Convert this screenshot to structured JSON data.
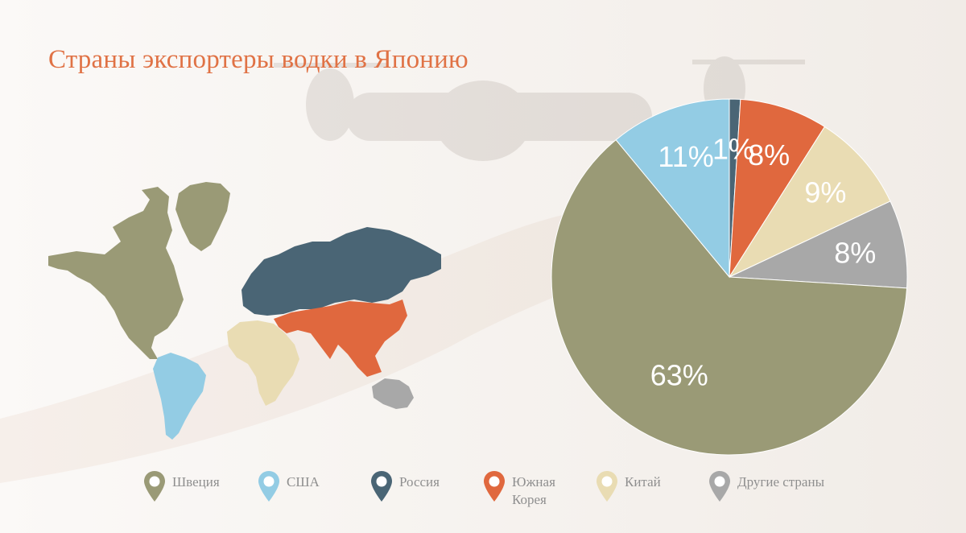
{
  "title": "Страны экспортеры водки в Японию",
  "chart_data": {
    "type": "pie",
    "start_angle_deg": 0,
    "direction": "clockwise_from_top",
    "slices": [
      {
        "label": "Россия",
        "value": 1,
        "display": "1%",
        "color": "#4a6575"
      },
      {
        "label": "Южная Корея",
        "value": 8,
        "display": "8%",
        "color": "#e0683e"
      },
      {
        "label": "Китай",
        "value": 9,
        "display": "9%",
        "color": "#e9dcb3"
      },
      {
        "label": "Другие страны",
        "value": 8,
        "display": "8%",
        "color": "#a8a8a8"
      },
      {
        "label": "Швеция",
        "value": 63,
        "display": "63%",
        "color": "#9a9a76"
      },
      {
        "label": "США",
        "value": 11,
        "display": "11%",
        "color": "#93cce4"
      }
    ]
  },
  "legend": [
    {
      "label": "Швеция",
      "color": "#9a9a76"
    },
    {
      "label": "США",
      "color": "#93cce4"
    },
    {
      "label": "Россия",
      "color": "#4a6575"
    },
    {
      "label": "Южная\nКорея",
      "color": "#e0683e"
    },
    {
      "label": "Китай",
      "color": "#e9dcb3"
    },
    {
      "label": "Другие страны",
      "color": "#a8a8a8"
    }
  ],
  "map_regions": [
    {
      "name": "north-america",
      "color": "#9a9a76"
    },
    {
      "name": "greenland",
      "color": "#9a9a76"
    },
    {
      "name": "south-america",
      "color": "#93cce4"
    },
    {
      "name": "europe-russia",
      "color": "#4a6575"
    },
    {
      "name": "asia",
      "color": "#e0683e"
    },
    {
      "name": "africa",
      "color": "#e9dcb3"
    },
    {
      "name": "australia",
      "color": "#a8a8a8"
    }
  ]
}
